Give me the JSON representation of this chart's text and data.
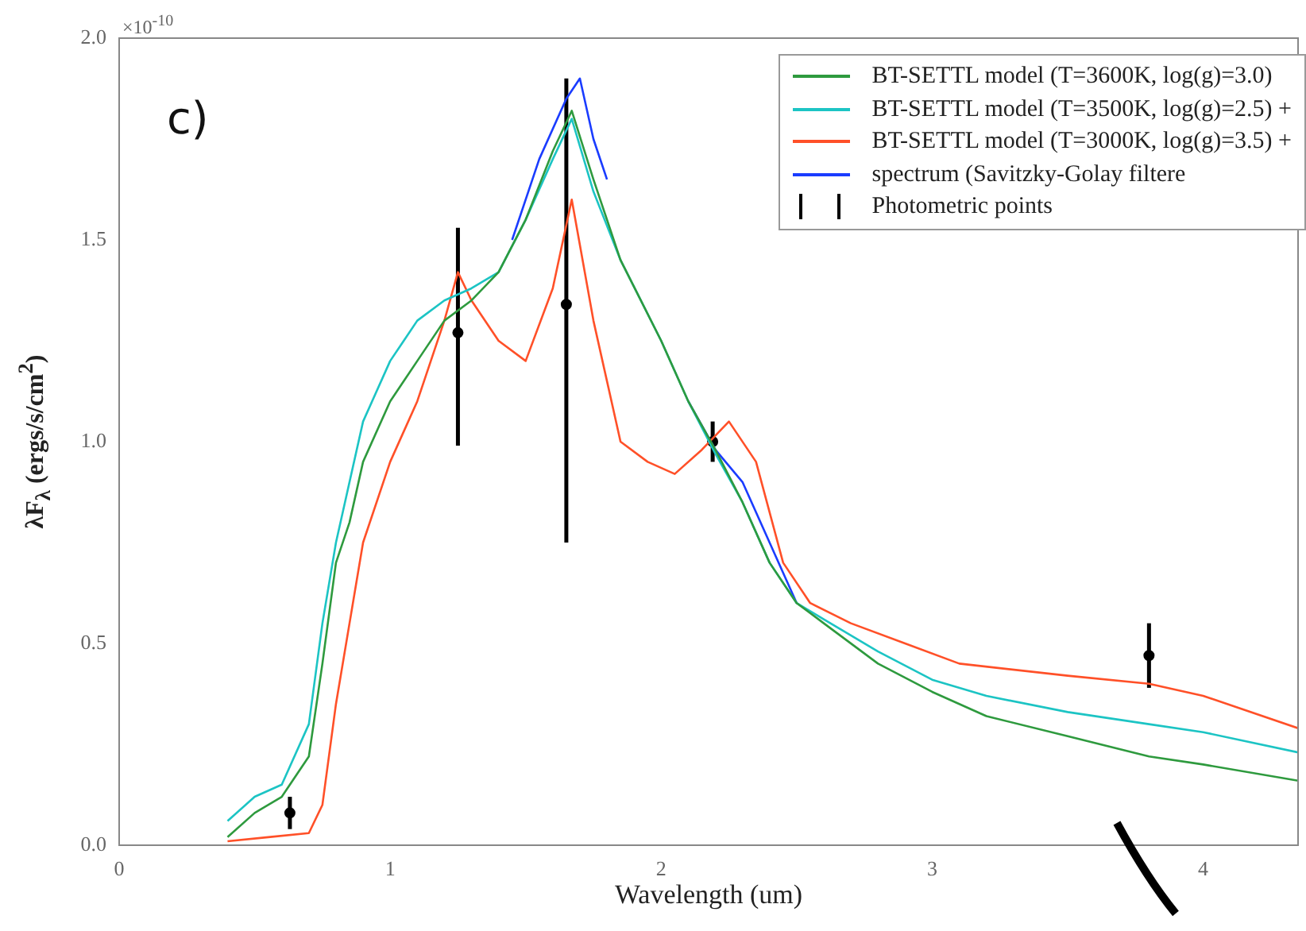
{
  "chart_data": {
    "type": "line",
    "xlabel": "Wavelength (um)",
    "ylabel": "λF$_{λ}$ (ergs/s/cm$^{2}$)",
    "annotations": [
      "c)",
      "×10$^{-10}$"
    ],
    "xlim": [
      0,
      4.35
    ],
    "xticks": [
      0,
      1,
      2,
      3,
      4
    ],
    "ylim": [
      0,
      2
    ],
    "yticks": [
      {
        "value": 0,
        "label": "0.0"
      },
      {
        "value": 0.5,
        "label": "0.5"
      },
      {
        "value": 1,
        "label": "1.0"
      },
      {
        "value": 1.5,
        "label": "1.5"
      },
      {
        "value": 2,
        "label": "2.0"
      }
    ],
    "grid": false,
    "legend": "top right",
    "marker": "none",
    "line_style": "solid",
    "series": [
      {
        "name": "BT-SETTL model (T=3600K, log(g)=3.0)",
        "color": "#2e9a3e",
        "x": [
          0.4,
          0.5,
          0.6,
          0.7,
          0.75,
          0.8,
          0.85,
          0.9,
          1.0,
          1.1,
          1.2,
          1.3,
          1.4,
          1.5,
          1.6,
          1.67,
          1.75,
          1.85,
          2.0,
          2.1,
          2.2,
          2.3,
          2.4,
          2.5,
          2.6,
          2.8,
          3.0,
          3.2,
          3.5,
          3.8,
          4.0,
          4.35
        ],
        "values": [
          0.02,
          0.08,
          0.12,
          0.22,
          0.45,
          0.7,
          0.8,
          0.95,
          1.1,
          1.2,
          1.3,
          1.35,
          1.42,
          1.55,
          1.72,
          1.82,
          1.65,
          1.45,
          1.25,
          1.1,
          0.98,
          0.85,
          0.7,
          0.6,
          0.55,
          0.45,
          0.38,
          0.32,
          0.27,
          0.22,
          0.2,
          0.16
        ]
      },
      {
        "name": "BT-SETTL model (T=3500K, log(g)=2.5) +",
        "color": "#1cc4c4",
        "x": [
          0.4,
          0.5,
          0.6,
          0.7,
          0.75,
          0.8,
          0.85,
          0.9,
          1.0,
          1.1,
          1.2,
          1.3,
          1.4,
          1.5,
          1.6,
          1.67,
          1.75,
          1.85,
          2.0,
          2.1,
          2.2,
          2.3,
          2.4,
          2.5,
          2.6,
          2.8,
          3.0,
          3.2,
          3.5,
          3.8,
          4.0,
          4.35
        ],
        "values": [
          0.06,
          0.12,
          0.15,
          0.3,
          0.55,
          0.75,
          0.9,
          1.05,
          1.2,
          1.3,
          1.35,
          1.38,
          1.42,
          1.55,
          1.7,
          1.8,
          1.62,
          1.45,
          1.25,
          1.1,
          0.97,
          0.85,
          0.7,
          0.6,
          0.56,
          0.48,
          0.41,
          0.37,
          0.33,
          0.3,
          0.28,
          0.23
        ]
      },
      {
        "name": "BT-SETTL model (T=3000K, log(g)=3.5) +",
        "color": "#ff5028",
        "x": [
          0.4,
          0.55,
          0.7,
          0.75,
          0.8,
          0.85,
          0.9,
          1.0,
          1.1,
          1.2,
          1.25,
          1.3,
          1.4,
          1.5,
          1.6,
          1.67,
          1.75,
          1.85,
          1.95,
          2.05,
          2.15,
          2.25,
          2.35,
          2.45,
          2.55,
          2.7,
          2.9,
          3.1,
          3.5,
          3.8,
          4.0,
          4.35
        ],
        "values": [
          0.01,
          0.02,
          0.03,
          0.1,
          0.35,
          0.55,
          0.75,
          0.95,
          1.1,
          1.3,
          1.42,
          1.35,
          1.25,
          1.2,
          1.38,
          1.6,
          1.3,
          1.0,
          0.95,
          0.92,
          0.98,
          1.05,
          0.95,
          0.7,
          0.6,
          0.55,
          0.5,
          0.45,
          0.42,
          0.4,
          0.37,
          0.29
        ]
      },
      {
        "name": "spectrum (Savitzky-Golay filtere",
        "color": "#1a3cff",
        "x": [
          1.45,
          1.55,
          1.65,
          1.7,
          1.75,
          1.8,
          null,
          2.1,
          2.2,
          2.3,
          2.4,
          2.5
        ],
        "values": [
          1.5,
          1.7,
          1.85,
          1.9,
          1.75,
          1.65,
          null,
          1.1,
          0.98,
          0.9,
          0.75,
          0.6
        ]
      },
      {
        "name": "Photometric points",
        "type": "scatter",
        "marker": "circle",
        "color": "#000000",
        "x": [
          0.63,
          1.25,
          1.65,
          2.19,
          3.8
        ],
        "values": [
          0.08,
          1.27,
          1.34,
          1.0,
          0.47
        ],
        "errors": [
          0.04,
          [
            0.99,
            1.53
          ],
          [
            0.75,
            1.9
          ],
          0.05,
          [
            0.39,
            0.55
          ]
        ]
      }
    ]
  }
}
